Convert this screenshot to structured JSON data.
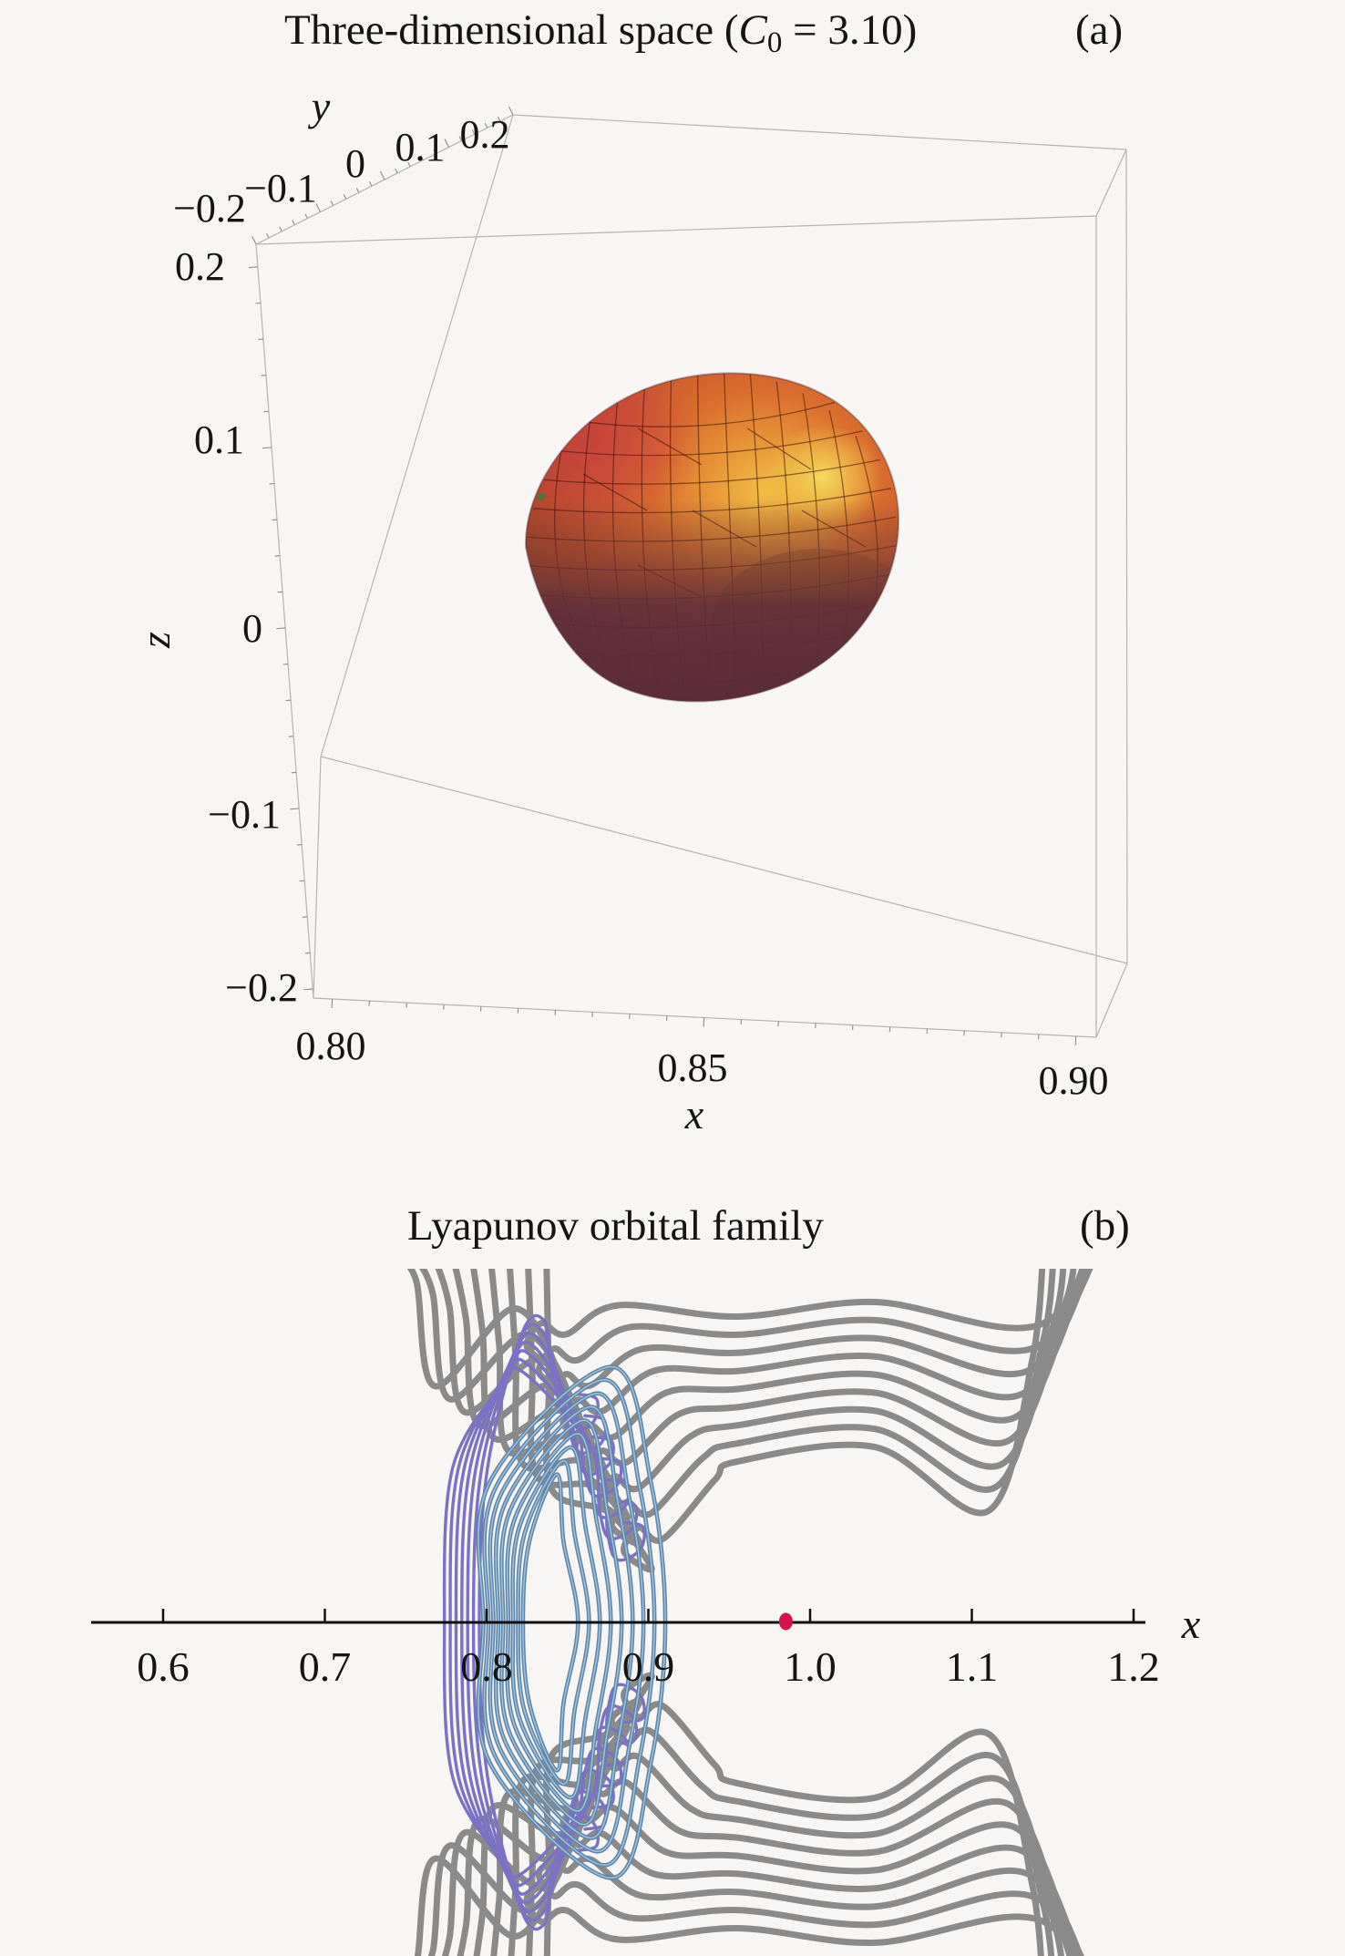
{
  "figure": {
    "background": "#f7f6f4",
    "panels": [
      "a",
      "b"
    ]
  },
  "chart_data": [
    {
      "id": "panel-a",
      "type": "surface3d",
      "panel_label": "(a)",
      "title_prefix": "Three-dimensional space (",
      "title_var": "C",
      "title_sub": "0",
      "title_suffix": " = 3.10)",
      "axes": {
        "x": {
          "label": "x",
          "ticks": [
            "0.80",
            "0.85",
            "0.90"
          ],
          "range": [
            0.8,
            0.9
          ]
        },
        "y": {
          "label": "y",
          "ticks": [
            "−0.2",
            "−0.1",
            "0",
            "0.1",
            "0.2"
          ],
          "range": [
            -0.2,
            0.2
          ]
        },
        "z": {
          "label": "z",
          "ticks": [
            "0.2",
            "0.1",
            "0",
            "−0.1",
            "−0.2"
          ],
          "range": [
            -0.2,
            0.2
          ]
        }
      },
      "grid": false,
      "surface": {
        "description": "closed egg-shaped zero-velocity surface, mesh-shaded, centered near x=0.85, y=0, z=0",
        "mesh": {
          "lat_lines": 10,
          "lon_lines": 12
        },
        "colors": {
          "highlight": "#f4d054",
          "upper": "#e08232",
          "mid": "#c8552d",
          "crimson_patch": "#c63946",
          "bottom_dark": "#5a2c3c",
          "brown_lower_right": "#8a4a2a",
          "mesh_line": "#3c140a"
        }
      }
    },
    {
      "id": "panel-b",
      "type": "line",
      "panel_label": "(b)",
      "title": "Lyapunov orbital family",
      "xlabel": "x",
      "x_ticks": [
        "0.6",
        "0.7",
        "0.8",
        "0.9",
        "1.0",
        "1.1",
        "1.2"
      ],
      "x_range": [
        0.6,
        1.2
      ],
      "legend": "none",
      "marker": {
        "name": "secondary-body-marker",
        "x": 0.985,
        "y": 0,
        "color": "#d7114c"
      },
      "families": {
        "gray": {
          "name": "outer orbital family",
          "color": "#8a8a8a",
          "stroke_width": 7,
          "symmetric_about_x_axis": true,
          "curves": [
            {
              "XL": 0.745,
              "lean": 0.768,
              "Lx": 0.836,
              "Ly": 0.172,
              "h": 0.196,
              "xd": 1.142,
              "hd": 0.184,
              "xe": 1.197
            },
            {
              "XL": 0.7565,
              "lean": 0.777,
              "Lx": 0.8435,
              "Ly": 0.1562,
              "h": 0.1848,
              "xd": 1.138,
              "hd": 0.1696,
              "xe": 1.1904
            },
            {
              "XL": 0.768,
              "lean": 0.786,
              "Lx": 0.851,
              "Ly": 0.1404,
              "h": 0.1736,
              "xd": 1.134,
              "hd": 0.1552,
              "xe": 1.1838
            },
            {
              "XL": 0.7795,
              "lean": 0.795,
              "Lx": 0.8585,
              "Ly": 0.1246,
              "h": 0.1624,
              "xd": 1.13,
              "hd": 0.1408,
              "xe": 1.1772
            },
            {
              "XL": 0.791,
              "lean": 0.804,
              "Lx": 0.866,
              "Ly": 0.1088,
              "h": 0.1512,
              "xd": 1.126,
              "hd": 0.1264,
              "xe": 1.1706
            },
            {
              "XL": 0.8025,
              "lean": 0.813,
              "Lx": 0.8735,
              "Ly": 0.093,
              "h": 0.14,
              "xd": 1.122,
              "hd": 0.112,
              "xe": 1.164
            },
            {
              "XL": 0.814,
              "lean": 0.822,
              "Lx": 0.881,
              "Ly": 0.0772,
              "h": 0.1288,
              "xd": 1.118,
              "hd": 0.0976,
              "xe": 1.1574
            },
            {
              "XL": 0.8255,
              "lean": 0.831,
              "Lx": 0.8885,
              "Ly": 0.0614,
              "h": 0.1176,
              "xd": 1.114,
              "hd": 0.0832,
              "xe": 1.1508
            },
            {
              "XL": 0.837,
              "lean": 0.84,
              "Lx": 0.896,
              "Ly": 0.0456,
              "h": 0.1064,
              "xd": 1.11,
              "hd": 0.0688,
              "xe": 1.1442
            }
          ]
        },
        "purple": {
          "name": "planar Lyapunov family (violet)",
          "color": "#7b72c4",
          "stroke_width": 3.4,
          "symmetric_about_x_axis": true,
          "curves": [
            {
              "Cx": 0.856,
              "Cy": 0.128,
              "ax": 0.836,
              "ay": 0.186,
              "XL": 0.7955
            },
            {
              "Cx": 0.8608,
              "Cy": 0.1148,
              "ax": 0.834,
              "ay": 0.1806,
              "XL": 0.7919
            },
            {
              "Cx": 0.8656,
              "Cy": 0.1016,
              "ax": 0.832,
              "ay": 0.1752,
              "XL": 0.7883
            },
            {
              "Cx": 0.8704,
              "Cy": 0.0884,
              "ax": 0.83,
              "ay": 0.1698,
              "XL": 0.7847
            },
            {
              "Cx": 0.8752,
              "Cy": 0.0752,
              "ax": 0.828,
              "ay": 0.1644,
              "XL": 0.7811
            },
            {
              "Cx": 0.88,
              "Cy": 0.062,
              "ax": 0.826,
              "ay": 0.159,
              "XL": 0.7775
            },
            {
              "Cx": 0.8848,
              "Cy": 0.0488,
              "ax": 0.824,
              "ay": 0.1536,
              "XL": 0.7739
            }
          ]
        },
        "blue": {
          "name": "Lyapunov orbits (blue closed ovals)",
          "color": "#5d86aa",
          "core_color": "#a9c8e0",
          "stroke_width": 4.6,
          "closed": true,
          "curves": [
            {
              "XL": 0.8225,
              "XR": 0.8565,
              "ry": 0.0915,
              "Tx": 0.8435
            },
            {
              "XL": 0.8195,
              "XR": 0.8633,
              "ry": 0.0999,
              "Tx": 0.8477
            },
            {
              "XL": 0.8164,
              "XR": 0.87,
              "ry": 0.1082,
              "Tx": 0.8519
            },
            {
              "XL": 0.8134,
              "XR": 0.8768,
              "ry": 0.1166,
              "Tx": 0.8561
            },
            {
              "XL": 0.8103,
              "XR": 0.8835,
              "ry": 0.1249,
              "Tx": 0.8603
            },
            {
              "XL": 0.8073,
              "XR": 0.8903,
              "ry": 0.1333,
              "Tx": 0.8645
            },
            {
              "XL": 0.8042,
              "XR": 0.897,
              "ry": 0.1416,
              "Tx": 0.8687
            },
            {
              "XL": 0.8012,
              "XR": 0.9038,
              "ry": 0.15,
              "Tx": 0.8729
            },
            {
              "XL": 0.798,
              "XR": 0.9105,
              "ry": 0.158,
              "Tx": 0.8771
            }
          ]
        }
      }
    }
  ]
}
